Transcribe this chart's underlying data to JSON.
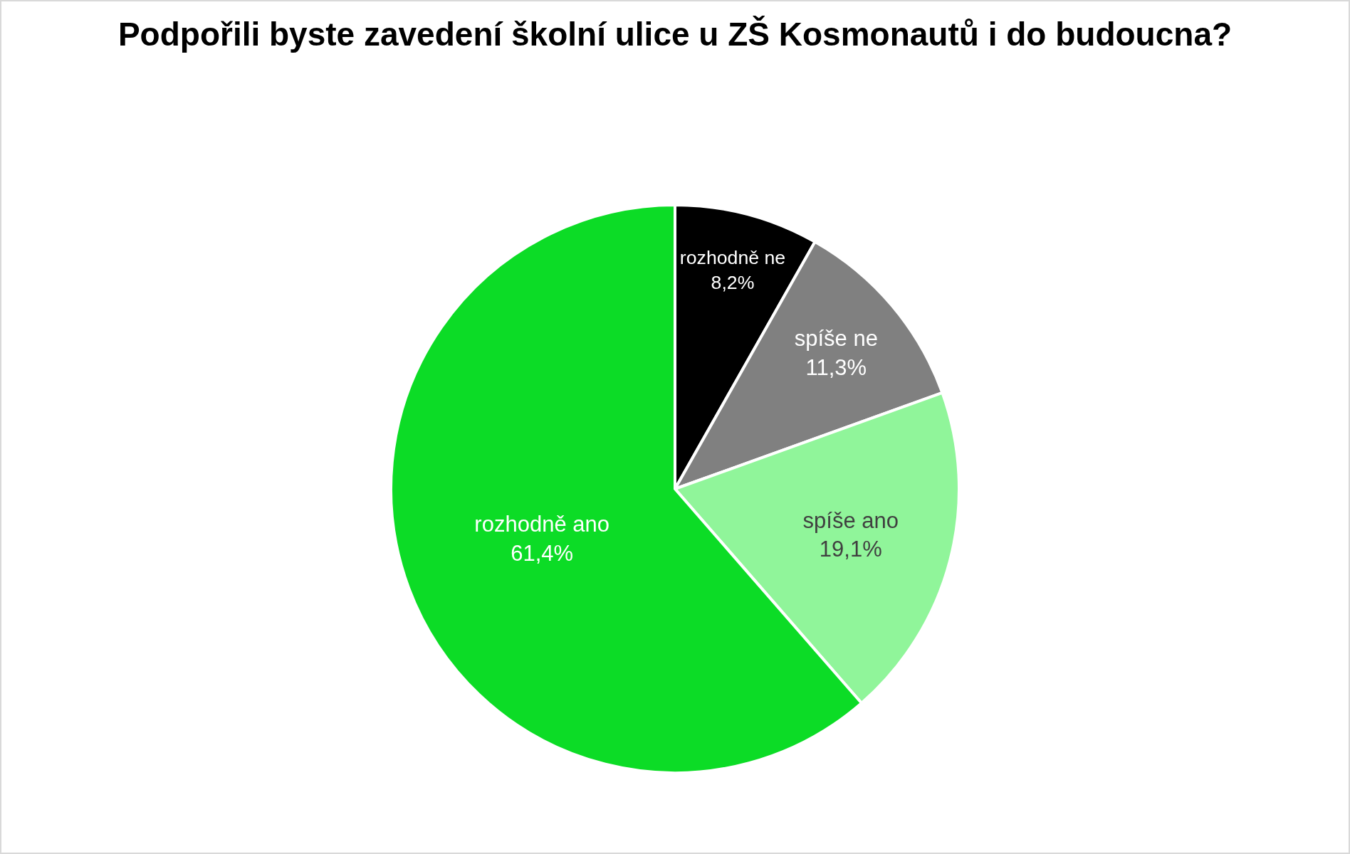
{
  "chart_data": {
    "type": "pie",
    "title": "Podpořili byste zavedení školní ulice u ZŠ Kosmonautů i do budoucna?",
    "categories": [
      "rozhodně ne",
      "spíše ne",
      "spíše ano",
      "rozhodně ano"
    ],
    "values": [
      8.2,
      11.3,
      19.1,
      61.4
    ],
    "colors": [
      "#000000",
      "#808080",
      "#90f59a",
      "#0cdc26"
    ],
    "value_labels": [
      "8,2%",
      "11,3%",
      "19,1%",
      "61,4%"
    ]
  }
}
